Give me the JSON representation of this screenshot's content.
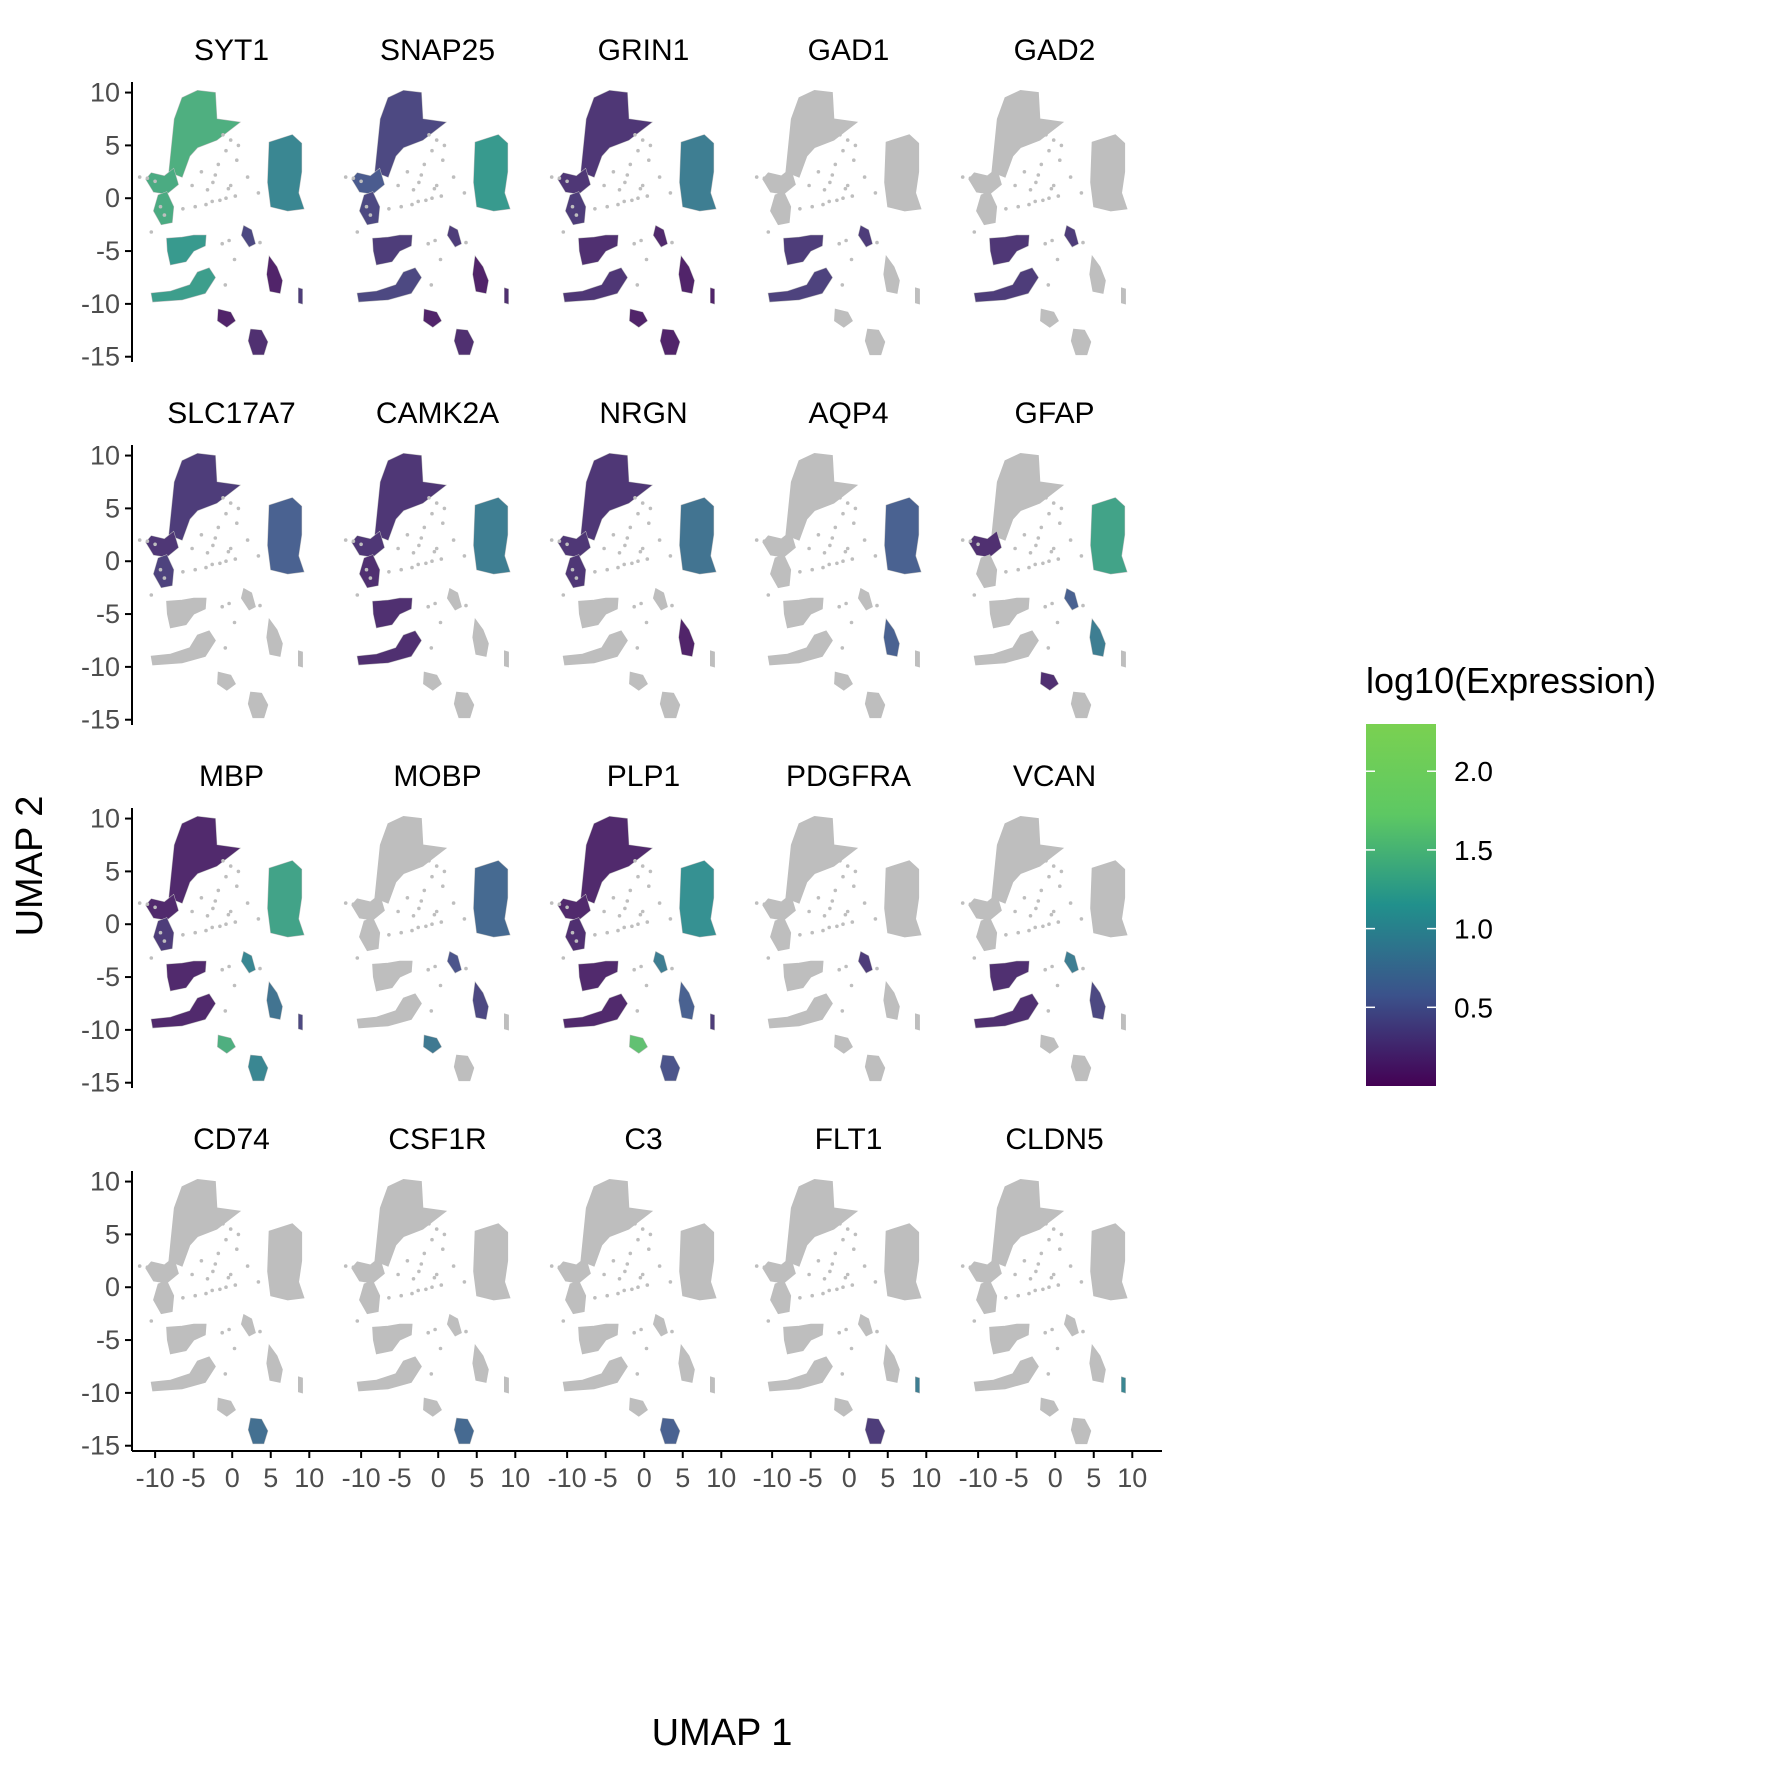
{
  "chart_data": {
    "type": "scatter",
    "title": "",
    "xlabel": "UMAP 1",
    "ylabel": "UMAP 2",
    "xlim": [
      -13,
      11
    ],
    "ylim": [
      -15.5,
      11
    ],
    "xticks": [
      "-10",
      "-5",
      "0",
      "5",
      "10"
    ],
    "yticks": [
      "10",
      "5",
      "0",
      "-5",
      "-10",
      "-15"
    ],
    "grid": false,
    "legend": {
      "title": "log10(Expression)",
      "placement": "right",
      "ticks": [
        "2.0",
        "1.5",
        "1.0",
        "0.5"
      ],
      "tick_values": [
        2.0,
        1.5,
        1.0,
        0.5
      ],
      "range": [
        0.0,
        2.3
      ],
      "colormap": [
        "#440154",
        "#3b528b",
        "#21908c",
        "#5dc863",
        "#7ad151"
      ]
    },
    "background_color": "#bebebe",
    "panels": [
      {
        "gene": "SYT1",
        "expr": {
          "A": 1.45,
          "B": 1.4,
          "C": 1.4,
          "D": 1.2,
          "E": 1.25,
          "F": 1.0,
          "G": 0.4,
          "H": 0.1,
          "I": 0.1,
          "J": 0.2,
          "K": 0.3
        }
      },
      {
        "gene": "SNAP25",
        "expr": {
          "A": 0.4,
          "B": 0.55,
          "C": 0.4,
          "D": 0.3,
          "E": 0.4,
          "F": 1.2,
          "G": 0.3,
          "H": 0.1,
          "I": 0.1,
          "J": 0.2,
          "K": 0.2
        }
      },
      {
        "gene": "GRIN1",
        "expr": {
          "A": 0.25,
          "B": 0.25,
          "C": 0.3,
          "D": 0.2,
          "E": 0.25,
          "F": 0.9,
          "G": 0.15,
          "H": 0.1,
          "I": 0.1,
          "J": 0.1,
          "K": 0.1
        }
      },
      {
        "gene": "GAD1",
        "expr": {
          "A": 0,
          "B": 0,
          "C": 0,
          "D": 0.3,
          "E": 0.35,
          "F": 0,
          "G": 0.3,
          "H": 0,
          "I": 0,
          "J": 0,
          "K": 0
        }
      },
      {
        "gene": "GAD2",
        "expr": {
          "A": 0,
          "B": 0,
          "C": 0,
          "D": 0.25,
          "E": 0.3,
          "F": 0,
          "G": 0.3,
          "H": 0,
          "I": 0,
          "J": 0,
          "K": 0
        }
      },
      {
        "gene": "SLC17A7",
        "expr": {
          "A": 0.3,
          "B": 0.25,
          "C": 0.35,
          "D": 0,
          "E": 0,
          "F": 0.6,
          "G": 0,
          "H": 0,
          "I": 0,
          "J": 0,
          "K": 0
        }
      },
      {
        "gene": "CAMK2A",
        "expr": {
          "A": 0.25,
          "B": 0.25,
          "C": 0.2,
          "D": 0.2,
          "E": 0.2,
          "F": 0.9,
          "G": 0,
          "H": 0,
          "I": 0,
          "J": 0,
          "K": 0
        }
      },
      {
        "gene": "NRGN",
        "expr": {
          "A": 0.25,
          "B": 0.25,
          "C": 0.25,
          "D": 0,
          "E": 0,
          "F": 0.8,
          "G": 0,
          "H": 0.1,
          "I": 0,
          "J": 0,
          "K": 0
        }
      },
      {
        "gene": "AQP4",
        "expr": {
          "A": 0,
          "B": 0,
          "C": 0,
          "D": 0,
          "E": 0,
          "F": 0.6,
          "G": 0,
          "H": 0.6,
          "I": 0,
          "J": 0,
          "K": 0
        }
      },
      {
        "gene": "GFAP",
        "expr": {
          "A": 0,
          "B": 0.2,
          "C": 0,
          "D": 0,
          "E": 0,
          "F": 1.3,
          "G": 0.6,
          "H": 0.9,
          "I": 0.2,
          "J": 0,
          "K": 0
        }
      },
      {
        "gene": "MBP",
        "expr": {
          "A": 0.15,
          "B": 0.15,
          "C": 0.3,
          "D": 0.15,
          "E": 0.15,
          "F": 1.3,
          "G": 1.0,
          "H": 0.8,
          "I": 1.45,
          "J": 1.0,
          "K": 0.4
        }
      },
      {
        "gene": "MOBP",
        "expr": {
          "A": 0,
          "B": 0,
          "C": 0,
          "D": 0,
          "E": 0,
          "F": 0.7,
          "G": 0.5,
          "H": 0.4,
          "I": 0.85,
          "J": 0,
          "K": 0
        }
      },
      {
        "gene": "PLP1",
        "expr": {
          "A": 0.15,
          "B": 0.15,
          "C": 0.2,
          "D": 0.15,
          "E": 0.15,
          "F": 1.1,
          "G": 0.9,
          "H": 0.6,
          "I": 1.65,
          "J": 0.5,
          "K": 0.3
        }
      },
      {
        "gene": "PDGFRA",
        "expr": {
          "A": 0,
          "B": 0,
          "C": 0,
          "D": 0,
          "E": 0,
          "F": 0,
          "G": 0.3,
          "H": 0,
          "I": 0,
          "J": 0,
          "K": 0
        }
      },
      {
        "gene": "VCAN",
        "expr": {
          "A": 0,
          "B": 0,
          "C": 0,
          "D": 0.2,
          "E": 0.2,
          "F": 0,
          "G": 0.9,
          "H": 0.4,
          "I": 0,
          "J": 0,
          "K": 0
        }
      },
      {
        "gene": "CD74",
        "expr": {
          "A": 0,
          "B": 0,
          "C": 0,
          "D": 0,
          "E": 0,
          "F": 0,
          "G": 0,
          "H": 0,
          "I": 0,
          "J": 0.75,
          "K": 0
        }
      },
      {
        "gene": "CSF1R",
        "expr": {
          "A": 0,
          "B": 0,
          "C": 0,
          "D": 0,
          "E": 0,
          "F": 0,
          "G": 0,
          "H": 0,
          "I": 0,
          "J": 0.7,
          "K": 0
        }
      },
      {
        "gene": "C3",
        "expr": {
          "A": 0,
          "B": 0,
          "C": 0,
          "D": 0,
          "E": 0,
          "F": 0,
          "G": 0,
          "H": 0,
          "I": 0,
          "J": 0.6,
          "K": 0
        }
      },
      {
        "gene": "FLT1",
        "expr": {
          "A": 0,
          "B": 0,
          "C": 0,
          "D": 0,
          "E": 0,
          "F": 0,
          "G": 0,
          "H": 0,
          "I": 0,
          "J": 0.3,
          "K": 0.9
        }
      },
      {
        "gene": "CLDN5",
        "expr": {
          "A": 0,
          "B": 0,
          "C": 0,
          "D": 0,
          "E": 0,
          "F": 0,
          "G": 0,
          "H": 0,
          "I": 0,
          "J": 0,
          "K": 1.0
        }
      }
    ],
    "clusters": {
      "A": [
        [
          -8.2,
          2.5
        ],
        [
          -7.5,
          7.5
        ],
        [
          -6.5,
          9.5
        ],
        [
          -4.5,
          10.2
        ],
        [
          -2.2,
          10
        ],
        [
          -2.0,
          7.5
        ],
        [
          1.0,
          7.2
        ],
        [
          -2.0,
          5.5
        ],
        [
          -4.5,
          4.8
        ],
        [
          -5.5,
          4.0
        ],
        [
          -6.5,
          2.0
        ]
      ],
      "B": [
        [
          -11.2,
          1.8
        ],
        [
          -10.5,
          2.4
        ],
        [
          -8.8,
          2.1
        ],
        [
          -7.6,
          2.8
        ],
        [
          -7.0,
          1.3
        ],
        [
          -8.5,
          0.4
        ],
        [
          -10.2,
          0.6
        ]
      ],
      "C": [
        [
          -9.6,
          0.3
        ],
        [
          -8.5,
          0.6
        ],
        [
          -7.6,
          -0.8
        ],
        [
          -7.8,
          -2.3
        ],
        [
          -9.2,
          -2.5
        ],
        [
          -10.2,
          -1.2
        ]
      ],
      "D": [
        [
          -8.5,
          -3.8
        ],
        [
          -6.5,
          -3.7
        ],
        [
          -5.0,
          -3.5
        ],
        [
          -3.4,
          -3.5
        ],
        [
          -3.5,
          -4.5
        ],
        [
          -5.0,
          -5.0
        ],
        [
          -6.0,
          -6.0
        ],
        [
          -8.0,
          -6.3
        ],
        [
          -8.4,
          -5.0
        ]
      ],
      "E": [
        [
          -10.5,
          -9.0
        ],
        [
          -8.0,
          -8.8
        ],
        [
          -5.5,
          -8.2
        ],
        [
          -4.5,
          -7.0
        ],
        [
          -3.0,
          -6.6
        ],
        [
          -2.2,
          -7.5
        ],
        [
          -3.5,
          -9.0
        ],
        [
          -6.5,
          -9.6
        ],
        [
          -10.3,
          -9.8
        ]
      ],
      "F": [
        [
          4.8,
          5.3
        ],
        [
          7.8,
          6.0
        ],
        [
          9.0,
          5.2
        ],
        [
          9.0,
          2.5
        ],
        [
          8.6,
          0.5
        ],
        [
          9.3,
          -1.0
        ],
        [
          7.2,
          -1.2
        ],
        [
          5.0,
          -0.8
        ],
        [
          4.6,
          1.5
        ]
      ],
      "G": [
        [
          1.5,
          -2.6
        ],
        [
          2.5,
          -3.0
        ],
        [
          3.0,
          -4.3
        ],
        [
          2.2,
          -4.6
        ],
        [
          1.2,
          -3.5
        ]
      ],
      "H": [
        [
          4.8,
          -5.5
        ],
        [
          5.8,
          -6.5
        ],
        [
          6.5,
          -7.8
        ],
        [
          6.2,
          -9.0
        ],
        [
          4.9,
          -8.8
        ],
        [
          4.5,
          -7.2
        ]
      ],
      "I": [
        [
          -1.8,
          -10.5
        ],
        [
          -0.2,
          -10.8
        ],
        [
          0.4,
          -11.6
        ],
        [
          -0.7,
          -12.2
        ],
        [
          -1.9,
          -11.6
        ]
      ],
      "J": [
        [
          2.4,
          -12.4
        ],
        [
          3.8,
          -12.5
        ],
        [
          4.6,
          -13.6
        ],
        [
          4.1,
          -14.8
        ],
        [
          2.7,
          -14.8
        ],
        [
          2.1,
          -13.5
        ]
      ],
      "K": [
        [
          8.6,
          -8.5
        ],
        [
          9.1,
          -8.6
        ],
        [
          9.1,
          -10.0
        ],
        [
          8.6,
          -9.9
        ]
      ]
    },
    "fragments": [
      [
        -5.2,
        1.2
      ],
      [
        -4.0,
        2.5
      ],
      [
        -3.2,
        0.8
      ],
      [
        -2.5,
        1.5
      ],
      [
        -1.8,
        3.2
      ],
      [
        -0.8,
        4.5
      ],
      [
        -0.2,
        1.2
      ],
      [
        0.6,
        3.6
      ],
      [
        -4.8,
        -0.8
      ],
      [
        -3.4,
        -0.6
      ],
      [
        -2.6,
        -0.3
      ],
      [
        -1.6,
        -0.2
      ],
      [
        -0.8,
        0.0
      ],
      [
        0.4,
        0.2
      ],
      [
        -0.5,
        0.9
      ],
      [
        -2.2,
        2.2
      ],
      [
        -1.2,
        6.0
      ],
      [
        -0.2,
        5.5
      ],
      [
        0.8,
        5.0
      ],
      [
        2.0,
        2.0
      ],
      [
        3.4,
        0.5
      ],
      [
        3.6,
        -4.2
      ],
      [
        -6.4,
        -1.0
      ],
      [
        -10.5,
        -3.2
      ],
      [
        0.3,
        -5.8
      ],
      [
        -1.3,
        -4.3
      ],
      [
        -0.4,
        -4.0
      ],
      [
        -0.9,
        -8.2
      ],
      [
        -8.8,
        -1.6
      ],
      [
        -9.3,
        -0.8
      ],
      [
        -10.0,
        1.6
      ],
      [
        -11.0,
        1.9
      ],
      [
        -12.0,
        2.0
      ]
    ]
  }
}
